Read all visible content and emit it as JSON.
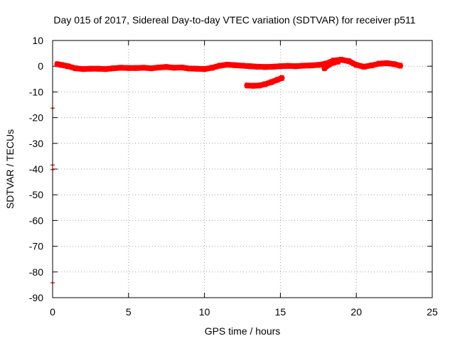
{
  "chart_data": {
    "type": "scatter",
    "title": "Day 015 of 2017, Sidereal Day-to-day VTEC variation (SDTVAR) for receiver p511",
    "xlabel": "GPS time / hours",
    "ylabel": "SDTVAR / TECUs",
    "xlim": [
      0,
      25
    ],
    "ylim": [
      -90,
      10
    ],
    "xticks": [
      0,
      5,
      10,
      15,
      20,
      25
    ],
    "yticks": [
      10,
      0,
      -10,
      -20,
      -30,
      -40,
      -50,
      -60,
      -70,
      -80,
      -90
    ],
    "grid": true,
    "legend": "none",
    "series_color": "#ff0000",
    "series": [
      {
        "values": [
          [
            0.3,
            0.8
          ],
          [
            0.6,
            0.5
          ],
          [
            1.0,
            0.0
          ],
          [
            1.5,
            -0.8
          ],
          [
            2.0,
            -1.1
          ],
          [
            2.5,
            -1.0
          ],
          [
            3.0,
            -1.0
          ],
          [
            3.5,
            -1.1
          ],
          [
            4.0,
            -0.8
          ],
          [
            4.5,
            -0.6
          ],
          [
            5.0,
            -0.7
          ],
          [
            5.5,
            -0.7
          ],
          [
            6.0,
            -0.6
          ],
          [
            6.5,
            -0.8
          ],
          [
            7.0,
            -0.5
          ],
          [
            7.5,
            -0.3
          ],
          [
            8.0,
            -0.6
          ],
          [
            8.5,
            -0.5
          ],
          [
            9.0,
            -0.9
          ],
          [
            9.5,
            -1.0
          ],
          [
            10.0,
            -1.1
          ],
          [
            10.5,
            -0.6
          ],
          [
            11.0,
            0.2
          ],
          [
            11.5,
            0.6
          ],
          [
            12.0,
            0.4
          ],
          [
            12.5,
            0.2
          ],
          [
            13.0,
            0.0
          ],
          [
            13.5,
            -0.2
          ],
          [
            14.0,
            -0.3
          ],
          [
            14.5,
            -0.2
          ],
          [
            15.0,
            0.0
          ],
          [
            15.5,
            0.1
          ],
          [
            16.0,
            0.0
          ],
          [
            16.5,
            0.2
          ],
          [
            17.0,
            0.3
          ],
          [
            17.5,
            0.5
          ],
          [
            18.0,
            1.0
          ],
          [
            18.5,
            2.2
          ],
          [
            19.0,
            2.5
          ],
          [
            19.5,
            2.0
          ],
          [
            20.0,
            0.5
          ],
          [
            20.5,
            -0.2
          ],
          [
            21.0,
            0.3
          ],
          [
            21.5,
            1.0
          ],
          [
            22.0,
            1.2
          ],
          [
            22.5,
            0.8
          ],
          [
            22.9,
            0.2
          ]
        ]
      },
      {
        "values": [
          [
            12.8,
            -7.5
          ],
          [
            13.2,
            -7.6
          ],
          [
            13.6,
            -7.5
          ],
          [
            14.0,
            -7.0
          ],
          [
            14.4,
            -6.2
          ],
          [
            14.8,
            -5.3
          ],
          [
            15.1,
            -4.6
          ]
        ]
      },
      {
        "values": [
          [
            17.9,
            -0.8
          ],
          [
            18.2,
            0.6
          ],
          [
            18.5,
            1.4
          ],
          [
            18.8,
            1.8
          ]
        ]
      }
    ],
    "isolated_points": [
      [
        0,
        -16.3
      ],
      [
        0,
        -38.4
      ],
      [
        0,
        -40.2
      ],
      [
        0,
        -84.2
      ]
    ]
  }
}
